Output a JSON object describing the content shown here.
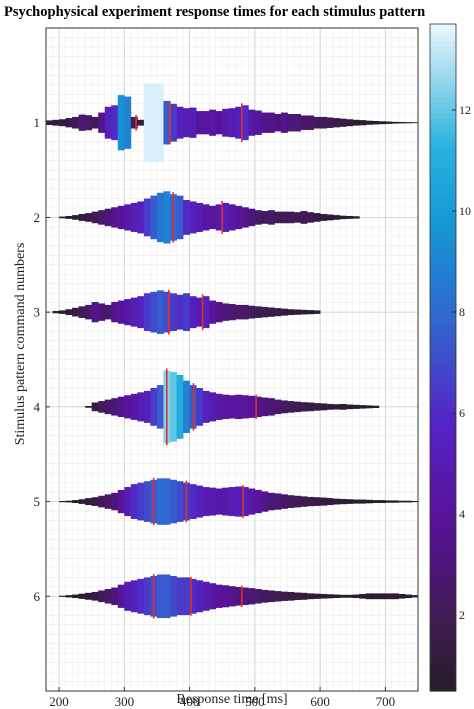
{
  "chart_data": {
    "type": "violin-histogram",
    "title": "Psychophysical experiment response times for each stimulus pattern",
    "xlabel": "Response time [ms]",
    "ylabel": "Stimulus pattern command numbers",
    "xlim": [
      180,
      750
    ],
    "ylim": [
      0,
      7
    ],
    "xticks": [
      200,
      300,
      400,
      500,
      600,
      700
    ],
    "yticks": [
      1,
      2,
      3,
      4,
      5,
      6
    ],
    "grid": true,
    "colorbar": {
      "ticks": [
        2,
        4,
        6,
        8,
        10,
        12
      ],
      "range": [
        0.5,
        13.7
      ]
    },
    "bin_width_ms": 10,
    "series": [
      {
        "pattern": 1,
        "bins": [
          [
            150,
            0.3
          ],
          [
            160,
            0.4
          ],
          [
            170,
            0.5
          ],
          [
            180,
            0.8
          ],
          [
            190,
            1.0
          ],
          [
            200,
            1.2
          ],
          [
            210,
            1.6
          ],
          [
            220,
            2.0
          ],
          [
            230,
            2.8
          ],
          [
            240,
            2.6
          ],
          [
            250,
            2.0
          ],
          [
            260,
            3.5
          ],
          [
            270,
            5.5
          ],
          [
            280,
            6.0
          ],
          [
            290,
            9.5
          ],
          [
            300,
            9.0
          ],
          [
            310,
            2.0
          ],
          [
            320,
            1.0
          ],
          [
            330,
            13.5
          ],
          [
            340,
            13.5
          ],
          [
            350,
            13.5
          ],
          [
            360,
            7.5
          ],
          [
            370,
            6.5
          ],
          [
            380,
            5.5
          ],
          [
            390,
            5.0
          ],
          [
            400,
            5.2
          ],
          [
            410,
            4.0
          ],
          [
            420,
            4.0
          ],
          [
            430,
            4.5
          ],
          [
            440,
            4.0
          ],
          [
            450,
            4.8
          ],
          [
            460,
            5.0
          ],
          [
            470,
            5.5
          ],
          [
            480,
            6.0
          ],
          [
            490,
            4.5
          ],
          [
            500,
            4.2
          ],
          [
            510,
            3.5
          ],
          [
            520,
            3.5
          ],
          [
            530,
            3.0
          ],
          [
            540,
            3.5
          ],
          [
            550,
            3.0
          ],
          [
            560,
            3.0
          ],
          [
            570,
            2.5
          ],
          [
            580,
            2.5
          ],
          [
            590,
            2.0
          ],
          [
            600,
            2.0
          ],
          [
            610,
            1.8
          ],
          [
            620,
            1.6
          ],
          [
            630,
            1.4
          ],
          [
            640,
            1.2
          ],
          [
            650,
            1.0
          ],
          [
            660,
            0.9
          ],
          [
            670,
            0.7
          ],
          [
            680,
            0.6
          ],
          [
            690,
            0.5
          ],
          [
            700,
            0.4
          ],
          [
            710,
            0.3
          ],
          [
            720,
            0.25
          ],
          [
            730,
            0.2
          ],
          [
            740,
            0.15
          ]
        ],
        "markers": [
          318,
          370,
          480
        ]
      },
      {
        "pattern": 2,
        "bins": [
          [
            200,
            0.3
          ],
          [
            210,
            0.5
          ],
          [
            220,
            0.8
          ],
          [
            230,
            1.2
          ],
          [
            240,
            1.5
          ],
          [
            250,
            2.0
          ],
          [
            260,
            2.5
          ],
          [
            270,
            3.0
          ],
          [
            280,
            3.5
          ],
          [
            290,
            4.0
          ],
          [
            300,
            4.5
          ],
          [
            310,
            5.0
          ],
          [
            320,
            5.5
          ],
          [
            330,
            6.5
          ],
          [
            340,
            7.5
          ],
          [
            350,
            8.5
          ],
          [
            360,
            9.0
          ],
          [
            370,
            8.0
          ],
          [
            380,
            7.5
          ],
          [
            390,
            6.0
          ],
          [
            400,
            5.5
          ],
          [
            410,
            5.0
          ],
          [
            420,
            4.5
          ],
          [
            430,
            4.0
          ],
          [
            440,
            4.5
          ],
          [
            450,
            5.0
          ],
          [
            460,
            4.5
          ],
          [
            470,
            4.0
          ],
          [
            480,
            3.5
          ],
          [
            490,
            3.0
          ],
          [
            500,
            2.5
          ],
          [
            510,
            2.2
          ],
          [
            520,
            2.5
          ],
          [
            530,
            2.0
          ],
          [
            540,
            2.0
          ],
          [
            550,
            2.0
          ],
          [
            560,
            1.8
          ],
          [
            570,
            2.2
          ],
          [
            580,
            1.8
          ],
          [
            590,
            1.5
          ],
          [
            600,
            1.2
          ],
          [
            610,
            1.0
          ],
          [
            620,
            0.8
          ],
          [
            630,
            0.6
          ],
          [
            640,
            0.5
          ],
          [
            650,
            0.4
          ]
        ],
        "markers": [
          375,
          450
        ]
      },
      {
        "pattern": 3,
        "bins": [
          [
            190,
            0.4
          ],
          [
            200,
            0.6
          ],
          [
            210,
            1.0
          ],
          [
            220,
            1.5
          ],
          [
            230,
            2.0
          ],
          [
            240,
            2.5
          ],
          [
            250,
            3.5
          ],
          [
            260,
            3.0
          ],
          [
            270,
            2.5
          ],
          [
            280,
            3.5
          ],
          [
            290,
            4.0
          ],
          [
            300,
            4.5
          ],
          [
            310,
            5.0
          ],
          [
            320,
            5.5
          ],
          [
            330,
            6.5
          ],
          [
            340,
            7.0
          ],
          [
            350,
            7.5
          ],
          [
            360,
            7.0
          ],
          [
            370,
            6.5
          ],
          [
            380,
            6.0
          ],
          [
            390,
            6.5
          ],
          [
            400,
            5.5
          ],
          [
            410,
            5.0
          ],
          [
            420,
            5.5
          ],
          [
            430,
            4.0
          ],
          [
            440,
            3.5
          ],
          [
            450,
            3.0
          ],
          [
            460,
            2.8
          ],
          [
            470,
            2.5
          ],
          [
            480,
            2.5
          ],
          [
            490,
            2.2
          ],
          [
            500,
            2.0
          ],
          [
            510,
            1.8
          ],
          [
            520,
            1.6
          ],
          [
            530,
            1.4
          ],
          [
            540,
            1.2
          ],
          [
            550,
            1.0
          ],
          [
            560,
            0.9
          ],
          [
            570,
            0.8
          ],
          [
            580,
            0.7
          ],
          [
            590,
            0.6
          ]
        ],
        "markers": [
          368,
          420
        ]
      },
      {
        "pattern": 4,
        "bins": [
          [
            240,
            0.3
          ],
          [
            250,
            1.5
          ],
          [
            260,
            2.0
          ],
          [
            270,
            2.5
          ],
          [
            280,
            3.0
          ],
          [
            290,
            3.5
          ],
          [
            300,
            4.0
          ],
          [
            310,
            4.5
          ],
          [
            320,
            5.0
          ],
          [
            330,
            5.5
          ],
          [
            340,
            6.5
          ],
          [
            350,
            7.5
          ],
          [
            360,
            12.5
          ],
          [
            370,
            12.0
          ],
          [
            380,
            11.0
          ],
          [
            390,
            9.0
          ],
          [
            400,
            7.5
          ],
          [
            410,
            6.5
          ],
          [
            420,
            5.5
          ],
          [
            430,
            5.0
          ],
          [
            440,
            4.5
          ],
          [
            450,
            4.2
          ],
          [
            460,
            4.0
          ],
          [
            470,
            4.2
          ],
          [
            480,
            4.0
          ],
          [
            490,
            3.8
          ],
          [
            500,
            3.5
          ],
          [
            510,
            3.2
          ],
          [
            520,
            3.0
          ],
          [
            530,
            2.5
          ],
          [
            540,
            2.2
          ],
          [
            550,
            2.0
          ],
          [
            560,
            1.8
          ],
          [
            570,
            1.6
          ],
          [
            580,
            1.5
          ],
          [
            590,
            1.3
          ],
          [
            600,
            1.2
          ],
          [
            610,
            1.0
          ],
          [
            620,
            0.9
          ],
          [
            630,
            1.0
          ],
          [
            640,
            0.8
          ],
          [
            650,
            0.7
          ],
          [
            660,
            0.6
          ],
          [
            670,
            0.5
          ],
          [
            680,
            0.4
          ]
        ],
        "markers": [
          365,
          406,
          502
        ]
      },
      {
        "pattern": 5,
        "bins": [
          [
            200,
            0.2
          ],
          [
            210,
            0.3
          ],
          [
            220,
            0.5
          ],
          [
            230,
            0.8
          ],
          [
            240,
            1.2
          ],
          [
            250,
            1.5
          ],
          [
            260,
            2.0
          ],
          [
            270,
            2.5
          ],
          [
            280,
            3.0
          ],
          [
            290,
            4.0
          ],
          [
            300,
            5.0
          ],
          [
            310,
            6.0
          ],
          [
            320,
            6.5
          ],
          [
            330,
            7.0
          ],
          [
            340,
            7.5
          ],
          [
            350,
            8.0
          ],
          [
            360,
            8.0
          ],
          [
            370,
            7.5
          ],
          [
            380,
            7.0
          ],
          [
            390,
            6.5
          ],
          [
            400,
            6.0
          ],
          [
            410,
            5.5
          ],
          [
            420,
            5.0
          ],
          [
            430,
            4.8
          ],
          [
            440,
            4.5
          ],
          [
            450,
            4.8
          ],
          [
            460,
            5.0
          ],
          [
            470,
            5.2
          ],
          [
            480,
            5.0
          ],
          [
            490,
            4.5
          ],
          [
            500,
            4.0
          ],
          [
            510,
            3.5
          ],
          [
            520,
            3.0
          ],
          [
            530,
            2.8
          ],
          [
            540,
            2.5
          ],
          [
            550,
            2.2
          ],
          [
            560,
            2.0
          ],
          [
            570,
            1.8
          ],
          [
            580,
            1.6
          ],
          [
            590,
            1.5
          ],
          [
            600,
            1.4
          ],
          [
            610,
            1.2
          ],
          [
            620,
            1.0
          ],
          [
            630,
            0.9
          ],
          [
            640,
            0.8
          ],
          [
            650,
            0.7
          ],
          [
            660,
            0.7
          ],
          [
            670,
            0.6
          ],
          [
            680,
            0.5
          ],
          [
            690,
            0.5
          ],
          [
            700,
            0.4
          ],
          [
            710,
            0.4
          ],
          [
            720,
            0.3
          ],
          [
            730,
            0.3
          ],
          [
            740,
            0.2
          ]
        ],
        "markers": [
          345,
          395,
          482
        ]
      },
      {
        "pattern": 6,
        "bins": [
          [
            200,
            0.2
          ],
          [
            210,
            0.4
          ],
          [
            220,
            0.6
          ],
          [
            230,
            0.9
          ],
          [
            240,
            1.2
          ],
          [
            250,
            1.5
          ],
          [
            260,
            2.0
          ],
          [
            270,
            2.5
          ],
          [
            280,
            3.0
          ],
          [
            290,
            4.0
          ],
          [
            300,
            5.0
          ],
          [
            310,
            5.5
          ],
          [
            320,
            6.0
          ],
          [
            330,
            6.5
          ],
          [
            340,
            7.0
          ],
          [
            350,
            7.5
          ],
          [
            360,
            7.5
          ],
          [
            370,
            7.0
          ],
          [
            380,
            6.5
          ],
          [
            390,
            6.5
          ],
          [
            400,
            6.0
          ],
          [
            410,
            5.5
          ],
          [
            420,
            5.0
          ],
          [
            430,
            4.5
          ],
          [
            440,
            4.0
          ],
          [
            450,
            3.8
          ],
          [
            460,
            3.5
          ],
          [
            470,
            3.2
          ],
          [
            480,
            3.0
          ],
          [
            490,
            2.8
          ],
          [
            500,
            2.5
          ],
          [
            510,
            2.2
          ],
          [
            520,
            2.0
          ],
          [
            530,
            1.8
          ],
          [
            540,
            1.6
          ],
          [
            550,
            1.5
          ],
          [
            560,
            1.3
          ],
          [
            570,
            1.2
          ],
          [
            580,
            1.0
          ],
          [
            590,
            0.9
          ],
          [
            600,
            0.8
          ],
          [
            610,
            0.7
          ],
          [
            620,
            0.6
          ],
          [
            630,
            0.5
          ],
          [
            640,
            0.5
          ],
          [
            650,
            0.6
          ],
          [
            660,
            0.8
          ],
          [
            670,
            1.0
          ],
          [
            680,
            1.0
          ],
          [
            690,
            1.0
          ],
          [
            700,
            1.0
          ],
          [
            710,
            1.0
          ],
          [
            720,
            0.8
          ],
          [
            730,
            0.6
          ],
          [
            740,
            0.4
          ]
        ],
        "markers": [
          345,
          402,
          480
        ]
      }
    ]
  }
}
